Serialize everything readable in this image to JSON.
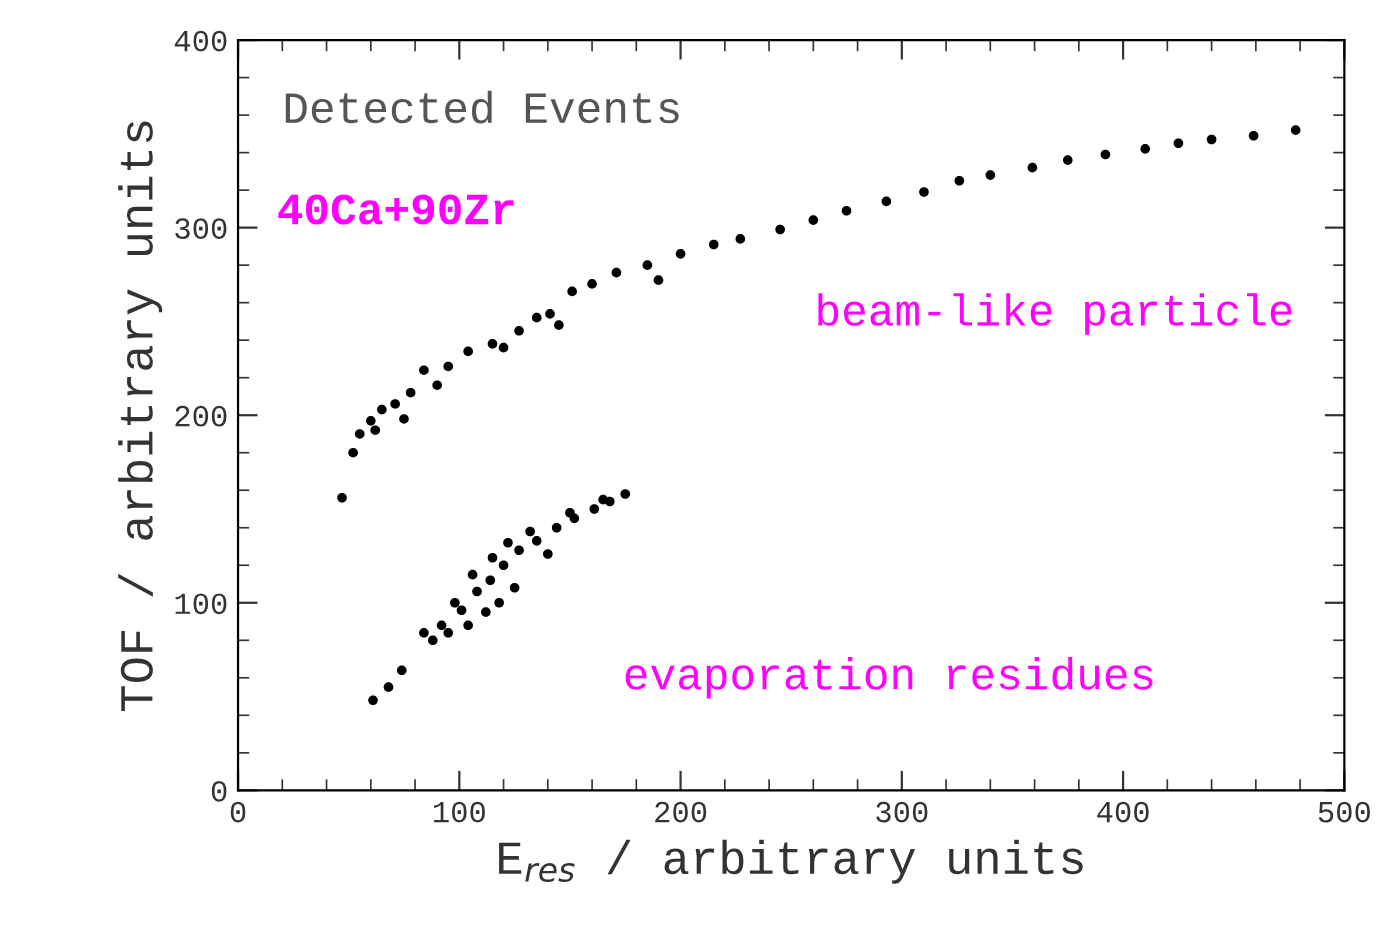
{
  "chart_data": {
    "type": "scatter",
    "xlabel": "E$_{res}$ / arbitrary units",
    "ylabel": "TOF / arbitrary units",
    "xlim": [
      0,
      500
    ],
    "xticks": [
      0,
      100,
      200,
      300,
      400,
      500
    ],
    "ylim": [
      0,
      400
    ],
    "yticks": [
      0,
      100,
      200,
      300,
      400
    ],
    "grid": false,
    "legend": false,
    "marker": "circle",
    "annotations": [
      "Detected Events",
      "40Ca+90Zr",
      "beam-like particle",
      "evaporation residues"
    ],
    "series": [
      {
        "color": "#000000",
        "x": [
          47,
          52,
          60,
          71,
          84,
          104,
          127,
          141,
          151,
          171,
          200,
          227,
          260,
          293,
          326,
          359,
          392,
          425,
          459,
          478,
          55,
          65,
          78,
          95,
          115,
          135,
          160,
          185,
          215,
          245,
          275,
          310,
          340,
          375,
          410,
          440,
          62,
          75,
          90,
          120,
          145,
          190
        ],
        "values": [
          156,
          180,
          197,
          206,
          224,
          234,
          245,
          254,
          266,
          276,
          286,
          294,
          304,
          314,
          325,
          332,
          339,
          345,
          349,
          352,
          190,
          203,
          212,
          226,
          238,
          252,
          270,
          280,
          291,
          299,
          309,
          319,
          328,
          336,
          342,
          347,
          192,
          198,
          216,
          236,
          248,
          272
        ]
      },
      {
        "color": "#000000",
        "x": [
          61,
          68,
          74,
          84,
          92,
          101,
          108,
          114,
          120,
          127,
          135,
          144,
          152,
          161,
          168,
          175,
          88,
          95,
          104,
          112,
          118,
          125,
          140,
          98,
          106,
          115,
          122,
          132,
          150,
          165
        ],
        "values": [
          48,
          55,
          64,
          84,
          88,
          96,
          106,
          112,
          120,
          128,
          133,
          140,
          145,
          150,
          154,
          158,
          80,
          84,
          88,
          95,
          100,
          108,
          126,
          100,
          115,
          124,
          132,
          138,
          148,
          155
        ]
      }
    ]
  }
}
